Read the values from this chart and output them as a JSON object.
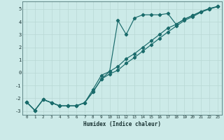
{
  "xlabel": "Humidex (Indice chaleur)",
  "bg_color": "#cceae8",
  "line_color": "#1a6b6b",
  "grid_color": "#b8d8d4",
  "xlim": [
    -0.5,
    23.5
  ],
  "ylim": [
    -3.3,
    5.6
  ],
  "xticks": [
    0,
    1,
    2,
    3,
    4,
    5,
    6,
    7,
    8,
    9,
    10,
    11,
    12,
    13,
    14,
    15,
    16,
    17,
    18,
    19,
    20,
    21,
    22,
    23
  ],
  "yticks": [
    -3,
    -2,
    -1,
    0,
    1,
    2,
    3,
    4,
    5
  ],
  "line1_x": [
    0,
    1,
    2,
    3,
    4,
    5,
    6,
    7,
    8,
    9,
    10,
    11,
    12,
    13,
    14,
    15,
    16,
    17,
    18,
    19,
    20,
    21,
    22,
    23
  ],
  "line1_y": [
    -2.3,
    -2.95,
    -2.1,
    -2.35,
    -2.6,
    -2.6,
    -2.6,
    -2.35,
    -1.5,
    -0.5,
    0.1,
    4.1,
    3.0,
    4.3,
    4.55,
    4.55,
    4.55,
    4.65,
    3.8,
    4.2,
    4.5,
    4.8,
    5.05,
    5.2
  ],
  "line2_x": [
    0,
    1,
    2,
    3,
    4,
    5,
    6,
    7,
    8,
    9,
    10,
    11,
    12,
    13,
    14,
    15,
    16,
    17,
    18,
    19,
    20,
    21,
    22,
    23
  ],
  "line2_y": [
    -2.3,
    -2.95,
    -2.1,
    -2.35,
    -2.6,
    -2.6,
    -2.6,
    -2.35,
    -1.5,
    -0.5,
    -0.1,
    0.2,
    0.75,
    1.2,
    1.7,
    2.2,
    2.7,
    3.2,
    3.65,
    4.1,
    4.4,
    4.75,
    5.0,
    5.2
  ],
  "line3_x": [
    0,
    1,
    2,
    3,
    4,
    5,
    6,
    7,
    8,
    9,
    10,
    11,
    12,
    13,
    14,
    15,
    16,
    17,
    18,
    19,
    20,
    21,
    22,
    23
  ],
  "line3_y": [
    -2.3,
    -2.95,
    -2.1,
    -2.35,
    -2.6,
    -2.6,
    -2.6,
    -2.35,
    -1.3,
    -0.2,
    0.1,
    0.5,
    1.1,
    1.5,
    2.0,
    2.5,
    3.0,
    3.5,
    3.8,
    4.2,
    4.5,
    4.8,
    5.0,
    5.2
  ]
}
